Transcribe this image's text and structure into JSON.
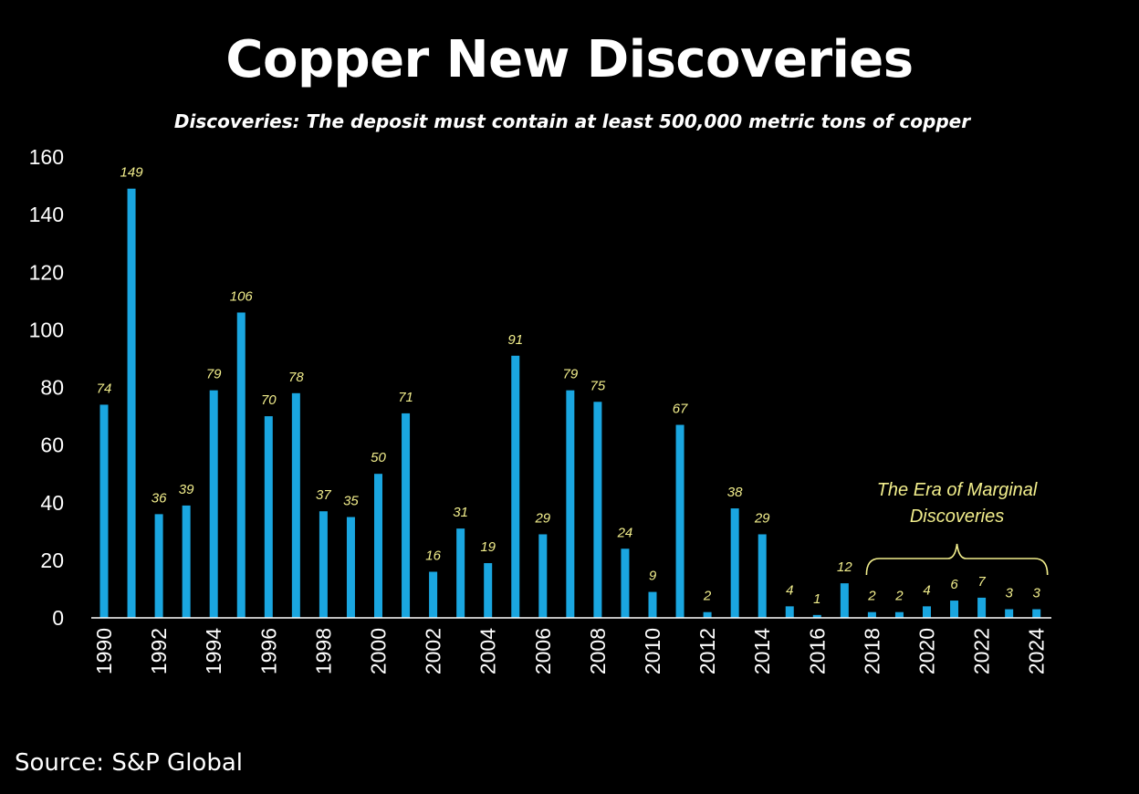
{
  "chart_data": {
    "type": "bar",
    "title": "Copper New Discoveries",
    "subtitle": "Discoveries: The deposit must contain at least 500,000 metric tons of copper",
    "categories": [
      "1990",
      "1991",
      "1992",
      "1993",
      "1994",
      "1995",
      "1996",
      "1997",
      "1998",
      "1999",
      "2000",
      "2001",
      "2002",
      "2003",
      "2004",
      "2005",
      "2006",
      "2007",
      "2008",
      "2009",
      "2010",
      "2011",
      "2012",
      "2013",
      "2014",
      "2015",
      "2016",
      "2017",
      "2018",
      "2019",
      "2020",
      "2021",
      "2022",
      "2023",
      "2024"
    ],
    "x_tick_labels": [
      "1990",
      "1992",
      "1994",
      "1996",
      "1998",
      "2000",
      "2002",
      "2004",
      "2006",
      "2008",
      "2010",
      "2012",
      "2014",
      "2016",
      "2018",
      "2020",
      "2022",
      "2024"
    ],
    "values": [
      74,
      149,
      36,
      39,
      79,
      106,
      70,
      78,
      37,
      35,
      50,
      71,
      16,
      31,
      19,
      91,
      29,
      79,
      75,
      24,
      9,
      67,
      2,
      38,
      29,
      4,
      1,
      12,
      2,
      2,
      4,
      6,
      7,
      3,
      3
    ],
    "y_ticks": [
      0,
      20,
      40,
      60,
      80,
      100,
      120,
      140,
      160
    ],
    "ylim": [
      0,
      160
    ],
    "grid": false,
    "legend": "none",
    "annotation": {
      "text_line1": "The Era of Marginal",
      "text_line2": "Discoveries",
      "from": "2018",
      "to": "2024"
    },
    "colors": {
      "bar": "#1aa6e0",
      "data_label": "#f2ee8c",
      "axis": "#ffffff",
      "background": "#000000"
    }
  },
  "source": "Source: S&P Global"
}
